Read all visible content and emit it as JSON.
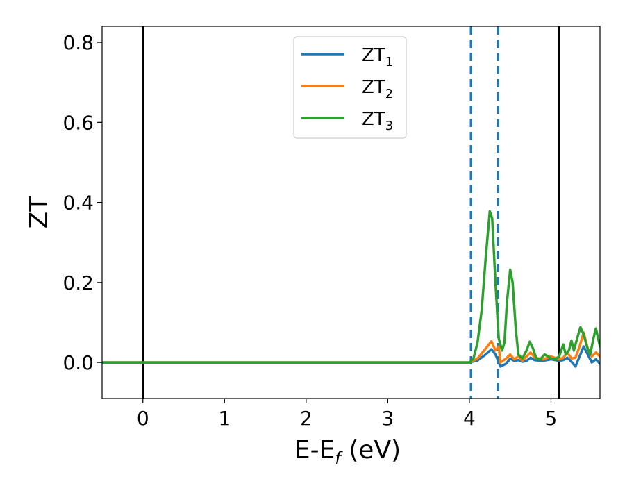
{
  "chart_data": {
    "type": "line",
    "xlabel": "E-E",
    "xlabel_sub": "f",
    "xlabel_unit": " (eV)",
    "ylabel": "ZT",
    "xlim": [
      -0.5,
      5.6
    ],
    "ylim": [
      -0.09,
      0.84
    ],
    "xticks": [
      0,
      1,
      2,
      3,
      4,
      5
    ],
    "xtick_labels": [
      "0",
      "1",
      "2",
      "3",
      "4",
      "5"
    ],
    "yticks": [
      0.0,
      0.2,
      0.4,
      0.6,
      0.8
    ],
    "ytick_labels": [
      "0.0",
      "0.2",
      "0.4",
      "0.6",
      "0.8"
    ],
    "grid": false,
    "legend_position": "top-center",
    "vlines": [
      {
        "x": 0.0,
        "style": "solid",
        "color": "#000000"
      },
      {
        "x": 5.1,
        "style": "solid",
        "color": "#000000"
      },
      {
        "x": 4.02,
        "style": "dashed",
        "color": "#1f77b4"
      },
      {
        "x": 4.35,
        "style": "dashed",
        "color": "#1f77b4"
      }
    ],
    "series": [
      {
        "name": "ZT",
        "subscript": "1",
        "color": "#1f77b4",
        "points": [
          [
            -0.5,
            0
          ],
          [
            4.0,
            0
          ],
          [
            4.1,
            0.005
          ],
          [
            4.2,
            0.02
          ],
          [
            4.27,
            0.033
          ],
          [
            4.32,
            0.02
          ],
          [
            4.38,
            -0.01
          ],
          [
            4.45,
            -0.003
          ],
          [
            4.5,
            0.01
          ],
          [
            4.55,
            0.004
          ],
          [
            4.6,
            0.006
          ],
          [
            4.65,
            0.002
          ],
          [
            4.7,
            0.004
          ],
          [
            4.75,
            0.012
          ],
          [
            4.8,
            0.006
          ],
          [
            4.9,
            0.004
          ],
          [
            5.0,
            0.008
          ],
          [
            5.1,
            0.004
          ],
          [
            5.15,
            0.006
          ],
          [
            5.2,
            0.012
          ],
          [
            5.25,
            0.002
          ],
          [
            5.3,
            -0.01
          ],
          [
            5.35,
            0.015
          ],
          [
            5.4,
            0.04
          ],
          [
            5.45,
            0.02
          ],
          [
            5.5,
            0.0
          ],
          [
            5.55,
            0.008
          ],
          [
            5.6,
            -0.003
          ]
        ]
      },
      {
        "name": "ZT",
        "subscript": "2",
        "color": "#ff7f0e",
        "points": [
          [
            -0.5,
            0
          ],
          [
            4.0,
            0
          ],
          [
            4.1,
            0.01
          ],
          [
            4.2,
            0.035
          ],
          [
            4.27,
            0.053
          ],
          [
            4.32,
            0.03
          ],
          [
            4.36,
            0.04
          ],
          [
            4.38,
            0.0
          ],
          [
            4.45,
            0.01
          ],
          [
            4.5,
            0.02
          ],
          [
            4.55,
            0.008
          ],
          [
            4.6,
            0.015
          ],
          [
            4.65,
            0.004
          ],
          [
            4.7,
            0.015
          ],
          [
            4.75,
            0.025
          ],
          [
            4.8,
            0.012
          ],
          [
            4.9,
            0.008
          ],
          [
            5.0,
            0.015
          ],
          [
            5.1,
            0.008
          ],
          [
            5.15,
            0.012
          ],
          [
            5.2,
            0.025
          ],
          [
            5.25,
            0.01
          ],
          [
            5.3,
            0.012
          ],
          [
            5.35,
            0.04
          ],
          [
            5.4,
            0.075
          ],
          [
            5.45,
            0.035
          ],
          [
            5.5,
            0.015
          ],
          [
            5.55,
            0.025
          ],
          [
            5.6,
            0.015
          ]
        ]
      },
      {
        "name": "ZT",
        "subscript": "3",
        "color": "#2ca02c",
        "points": [
          [
            -0.5,
            0
          ],
          [
            4.0,
            0
          ],
          [
            4.05,
            0.01
          ],
          [
            4.1,
            0.05
          ],
          [
            4.15,
            0.13
          ],
          [
            4.2,
            0.26
          ],
          [
            4.25,
            0.378
          ],
          [
            4.28,
            0.36
          ],
          [
            4.32,
            0.2
          ],
          [
            4.36,
            0.06
          ],
          [
            4.4,
            0.03
          ],
          [
            4.43,
            0.05
          ],
          [
            4.46,
            0.15
          ],
          [
            4.5,
            0.232
          ],
          [
            4.53,
            0.2
          ],
          [
            4.57,
            0.08
          ],
          [
            4.6,
            0.02
          ],
          [
            4.65,
            0.01
          ],
          [
            4.7,
            0.03
          ],
          [
            4.74,
            0.052
          ],
          [
            4.78,
            0.035
          ],
          [
            4.82,
            0.01
          ],
          [
            4.87,
            0.008
          ],
          [
            4.92,
            0.02
          ],
          [
            4.97,
            0.015
          ],
          [
            5.0,
            0.01
          ],
          [
            5.05,
            0.008
          ],
          [
            5.1,
            0.015
          ],
          [
            5.15,
            0.045
          ],
          [
            5.18,
            0.02
          ],
          [
            5.22,
            0.03
          ],
          [
            5.25,
            0.055
          ],
          [
            5.28,
            0.03
          ],
          [
            5.32,
            0.06
          ],
          [
            5.36,
            0.088
          ],
          [
            5.4,
            0.07
          ],
          [
            5.44,
            0.04
          ],
          [
            5.48,
            0.02
          ],
          [
            5.52,
            0.06
          ],
          [
            5.55,
            0.085
          ],
          [
            5.6,
            0.04
          ]
        ]
      }
    ]
  }
}
